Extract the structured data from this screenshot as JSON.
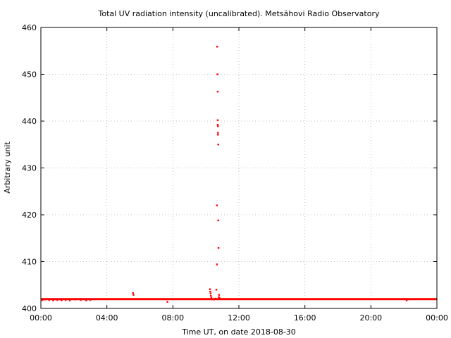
{
  "chart_data": {
    "type": "scatter",
    "title": "Total UV radiation intensity (uncalibrated). Metsähovi Radio Observatory",
    "xlabel": "Time UT, on date 2018-08-30",
    "ylabel": "Arbitrary unit",
    "xlim": [
      "00:00",
      "24:00"
    ],
    "ylim": [
      400,
      460
    ],
    "x_ticks": [
      "00:00",
      "04:00",
      "08:00",
      "12:00",
      "16:00",
      "20:00",
      "00:00"
    ],
    "y_ticks": [
      400,
      410,
      420,
      430,
      440,
      450,
      460
    ],
    "grid": true,
    "point_color": "#ff0000",
    "baseline": {
      "from": "00:00",
      "to": "24:00",
      "value": 402.0
    },
    "series": [
      {
        "x": [
          "00:05",
          "00:15",
          "00:30",
          "00:45",
          "01:00",
          "01:15",
          "01:30",
          "01:45",
          "02:05",
          "02:25",
          "02:45",
          "03:00",
          "05:35",
          "05:37",
          "07:40",
          "10:15",
          "10:16",
          "10:17",
          "10:18",
          "10:20",
          "10:25",
          "10:30",
          "10:35",
          "10:38",
          "10:40",
          "10:40",
          "10:41",
          "10:42",
          "10:43",
          "10:43",
          "10:43",
          "10:44",
          "10:44",
          "10:44",
          "10:45",
          "10:45",
          "10:46",
          "10:47",
          "10:48",
          "10:50",
          "22:10"
        ],
        "y": [
          401.8,
          401.9,
          401.8,
          401.7,
          401.8,
          401.7,
          401.8,
          401.7,
          401.9,
          401.8,
          401.7,
          401.8,
          403.3,
          402.9,
          401.4,
          404.1,
          403.6,
          403.2,
          402.7,
          402.3,
          402.0,
          401.9,
          402.1,
          404.0,
          409.4,
          422.0,
          455.9,
          450.0,
          446.3,
          439.2,
          440.2,
          438.9,
          437.5,
          437.1,
          435.0,
          418.8,
          412.9,
          402.4,
          402.9,
          402.2,
          401.7
        ]
      }
    ]
  }
}
